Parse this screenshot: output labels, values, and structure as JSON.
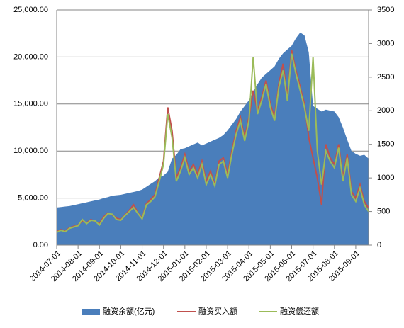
{
  "chart_data": {
    "type": "area-line",
    "categories": [
      "2014-07-01",
      null,
      null,
      null,
      null,
      "2014-08-01",
      null,
      null,
      null,
      null,
      "2014-09-01",
      null,
      null,
      null,
      null,
      "2014-10-01",
      null,
      null,
      null,
      null,
      "2014-11-01",
      null,
      null,
      null,
      null,
      "2014-12-01",
      null,
      null,
      null,
      null,
      "2015-01-01",
      null,
      null,
      null,
      null,
      "2015-02-01",
      null,
      null,
      null,
      null,
      "2015-03-01",
      null,
      null,
      null,
      null,
      "2015-04-01",
      null,
      null,
      null,
      null,
      "2015-05-01",
      null,
      null,
      null,
      null,
      "2015-06-01",
      null,
      null,
      null,
      null,
      "2015-07-01",
      null,
      null,
      null,
      null,
      "2015-08-01",
      null,
      null,
      null,
      null,
      "2015-09-01",
      null,
      null,
      null
    ],
    "series": [
      {
        "name": "融资余额(亿元)",
        "color": "#4a7ebb",
        "kind": "area",
        "values": [
          4000,
          4050,
          4100,
          4150,
          4250,
          4350,
          4450,
          4550,
          4650,
          4750,
          4850,
          5000,
          5100,
          5250,
          5300,
          5350,
          5450,
          5550,
          5650,
          5750,
          5900,
          6200,
          6500,
          6800,
          7200,
          7400,
          7800,
          9200,
          9600,
          10200,
          10300,
          10500,
          10700,
          10900,
          10600,
          10800,
          11000,
          11200,
          11400,
          11700,
          12200,
          12800,
          13400,
          14200,
          14800,
          15400,
          16300,
          17100,
          17800,
          18200,
          18600,
          19000,
          19800,
          20400,
          20800,
          21200,
          22000,
          22600,
          22300,
          20500,
          14800,
          14500,
          14200,
          14400,
          14300,
          14200,
          13600,
          12500,
          11200,
          10000,
          9700,
          9500,
          9600,
          9200
        ]
      },
      {
        "name": "融资买入额",
        "color": "#c0504d",
        "kind": "line",
        "axis": "y2",
        "values": [
          200,
          230,
          210,
          260,
          280,
          300,
          360,
          330,
          380,
          350,
          320,
          420,
          480,
          450,
          400,
          380,
          450,
          520,
          600,
          480,
          400,
          620,
          680,
          750,
          1000,
          1250,
          2050,
          1700,
          1000,
          1150,
          1350,
          1100,
          1200,
          1050,
          1250,
          950,
          1100,
          900,
          1250,
          1300,
          1050,
          1400,
          1700,
          1900,
          1600,
          1900,
          2300,
          2000,
          2200,
          2450,
          2100,
          1900,
          2400,
          2700,
          2200,
          2900,
          2600,
          2350,
          2100,
          1600,
          1300,
          1000,
          600,
          1500,
          1300,
          1200,
          1500,
          1000,
          1350,
          800,
          700,
          900,
          650,
          550
        ]
      },
      {
        "name": "融资偿还额",
        "color": "#9bbb59",
        "kind": "line",
        "axis": "y2",
        "values": [
          190,
          220,
          200,
          250,
          270,
          290,
          380,
          320,
          370,
          360,
          300,
          400,
          470,
          460,
          380,
          370,
          440,
          500,
          560,
          470,
          390,
          600,
          650,
          720,
          950,
          1200,
          1950,
          1600,
          950,
          1100,
          1300,
          1050,
          1150,
          1000,
          1200,
          900,
          1050,
          880,
          1200,
          1250,
          1000,
          1350,
          1650,
          1850,
          1550,
          1850,
          2800,
          1950,
          2150,
          2400,
          2050,
          1850,
          2350,
          2600,
          2150,
          2850,
          2550,
          2300,
          2050,
          1700,
          2800,
          1400,
          900,
          1400,
          1250,
          1150,
          1450,
          950,
          1300,
          750,
          650,
          850,
          600,
          500
        ]
      }
    ],
    "ylim": [
      0,
      25000
    ],
    "yticks": [
      {
        "value": 0,
        "label": "0.00"
      },
      {
        "value": 5000,
        "label": "5,000.00"
      },
      {
        "value": 10000,
        "label": "10,000.00"
      },
      {
        "value": 15000,
        "label": "15,000.00"
      },
      {
        "value": 20000,
        "label": "20,000.00"
      },
      {
        "value": 25000,
        "label": "25,000.00"
      }
    ],
    "y2lim": [
      0,
      3500
    ],
    "y2ticks": [
      0,
      500,
      1000,
      1500,
      2000,
      2500,
      3000,
      3500
    ],
    "grid": true,
    "legend": "bottom"
  }
}
